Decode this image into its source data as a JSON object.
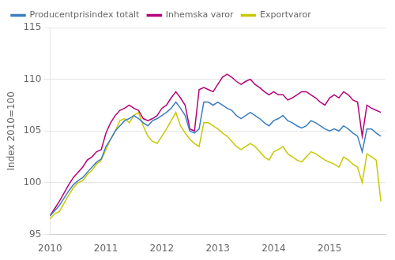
{
  "chart_data": {
    "type": "line",
    "ylabel": "Index 2010=100",
    "x": [
      2010,
      2010.083333,
      2010.166667,
      2010.25,
      2010.333333,
      2010.416667,
      2010.5,
      2010.583333,
      2010.666667,
      2010.75,
      2010.833333,
      2010.916667,
      2011,
      2011.083333,
      2011.166667,
      2011.25,
      2011.333333,
      2011.416667,
      2011.5,
      2011.583333,
      2011.666667,
      2011.75,
      2011.833333,
      2011.916667,
      2012,
      2012.083333,
      2012.166667,
      2012.25,
      2012.333333,
      2012.416667,
      2012.5,
      2012.583333,
      2012.666667,
      2012.75,
      2012.833333,
      2012.916667,
      2013,
      2013.083333,
      2013.166667,
      2013.25,
      2013.333333,
      2013.416667,
      2013.5,
      2013.583333,
      2013.666667,
      2013.75,
      2013.833333,
      2013.916667,
      2014,
      2014.083333,
      2014.166667,
      2014.25,
      2014.333333,
      2014.416667,
      2014.5,
      2014.583333,
      2014.666667,
      2014.75,
      2014.833333,
      2014.916667,
      2015,
      2015.083333,
      2015.166667,
      2015.25,
      2015.333333,
      2015.416667,
      2015.5,
      2015.583333,
      2015.666667,
      2015.75,
      2015.833333,
      2015.916667
    ],
    "series": [
      {
        "name": "Producentprisindex totalt",
        "color": "#3a7ebf",
        "values": [
          96.8,
          97.3,
          97.8,
          98.5,
          99.2,
          99.8,
          100.2,
          100.5,
          101.0,
          101.5,
          102.0,
          102.3,
          103.5,
          104.2,
          105.0,
          105.5,
          106.0,
          106.2,
          106.5,
          106.2,
          105.8,
          105.5,
          106.0,
          106.2,
          106.5,
          106.8,
          107.2,
          107.8,
          107.2,
          106.5,
          105.0,
          104.8,
          105.2,
          107.8,
          107.8,
          107.5,
          107.8,
          107.5,
          107.2,
          107.0,
          106.5,
          106.2,
          106.5,
          106.8,
          106.5,
          106.2,
          105.8,
          105.5,
          106.0,
          106.2,
          106.5,
          106.0,
          105.8,
          105.5,
          105.3,
          105.5,
          106.0,
          105.8,
          105.5,
          105.2,
          105.0,
          105.2,
          105.0,
          105.5,
          105.2,
          104.8,
          104.5,
          103.0,
          105.2,
          105.2,
          104.8,
          104.5
        ]
      },
      {
        "name": "Inhemska varor",
        "color": "#b5007a",
        "values": [
          96.8,
          97.5,
          98.2,
          99.0,
          99.8,
          100.5,
          101.0,
          101.5,
          102.2,
          102.5,
          103.0,
          103.2,
          104.8,
          105.8,
          106.5,
          107.0,
          107.2,
          107.5,
          107.2,
          107.0,
          106.2,
          106.0,
          106.2,
          106.5,
          107.2,
          107.5,
          108.2,
          108.8,
          108.2,
          107.5,
          105.2,
          105.0,
          109.0,
          109.2,
          109.0,
          108.8,
          109.5,
          110.2,
          110.5,
          110.2,
          109.8,
          109.5,
          109.8,
          110.0,
          109.5,
          109.2,
          108.8,
          108.5,
          108.8,
          108.5,
          108.5,
          108.0,
          108.2,
          108.5,
          108.8,
          108.8,
          108.5,
          108.2,
          107.8,
          107.5,
          108.2,
          108.5,
          108.2,
          108.8,
          108.5,
          108.0,
          107.8,
          104.5,
          107.5,
          107.2,
          107.0,
          106.8
        ]
      },
      {
        "name": "Exportvaror",
        "color": "#c8c800",
        "values": [
          96.5,
          97.0,
          97.2,
          98.0,
          98.8,
          99.5,
          100.0,
          100.2,
          100.8,
          101.2,
          101.8,
          102.2,
          103.2,
          104.2,
          105.0,
          106.0,
          106.2,
          105.8,
          106.5,
          106.8,
          105.5,
          104.5,
          104.0,
          103.8,
          104.5,
          105.2,
          106.0,
          106.8,
          105.5,
          104.8,
          104.2,
          103.8,
          103.5,
          105.8,
          105.8,
          105.5,
          105.2,
          104.8,
          104.5,
          104.0,
          103.5,
          103.2,
          103.5,
          103.8,
          103.5,
          103.0,
          102.5,
          102.2,
          103.0,
          103.2,
          103.5,
          102.8,
          102.5,
          102.2,
          102.0,
          102.5,
          103.0,
          102.8,
          102.5,
          102.2,
          102.0,
          101.8,
          101.5,
          102.5,
          102.2,
          101.8,
          101.5,
          100.0,
          102.8,
          102.5,
          102.2,
          98.2
        ]
      }
    ],
    "xlim": [
      2010,
      2016
    ],
    "xticks": [
      2010,
      2011,
      2012,
      2013,
      2014,
      2015
    ],
    "ylim": [
      95,
      115
    ],
    "yticks": [
      95,
      100,
      105,
      110,
      115
    ],
    "grid": "y",
    "legend": "upper left"
  }
}
